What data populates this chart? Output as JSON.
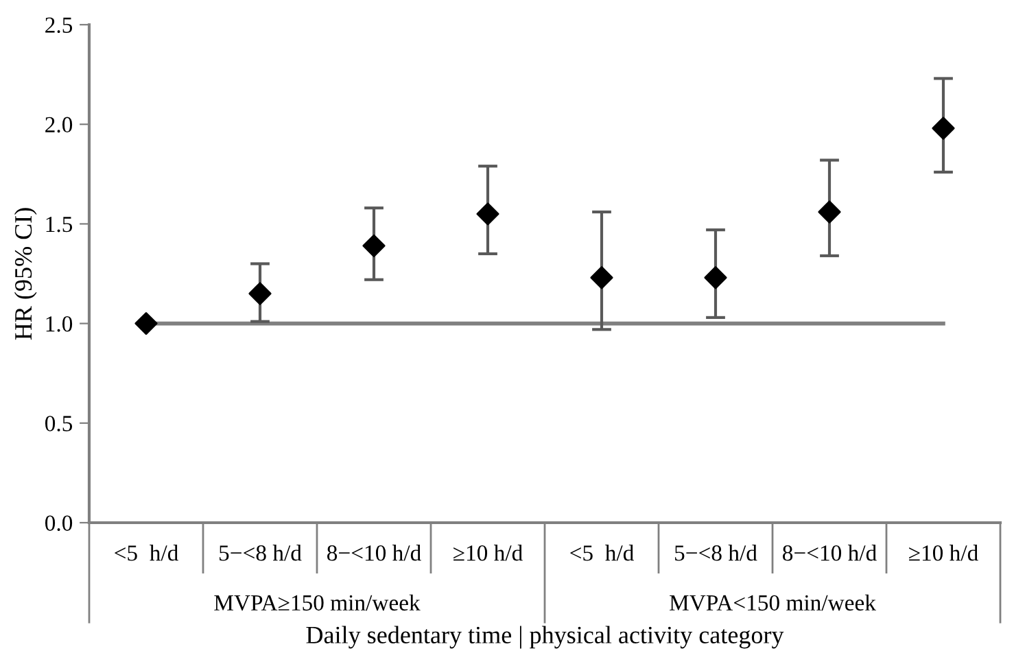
{
  "chart_data": {
    "type": "scatter",
    "xlabel": "Daily sedentary time | physical activity category",
    "ylabel": "HR (95% CI)",
    "categories": [
      "<5  h/d",
      "5−<8 h/d",
      "8−<10 h/d",
      "≥10 h/d",
      "<5  h/d",
      "5−<8 h/d",
      "8−<10 h/d",
      "≥10 h/d"
    ],
    "series": [
      {
        "color": "#000000",
        "values": [
          1.0,
          1.15,
          1.39,
          1.55,
          1.23,
          1.23,
          1.56,
          1.98
        ],
        "errors": [
          null,
          [
            1.01,
            1.3
          ],
          [
            1.22,
            1.58
          ],
          [
            1.35,
            1.79
          ],
          [
            0.97,
            1.56
          ],
          [
            1.03,
            1.47
          ],
          [
            1.34,
            1.82
          ],
          [
            1.76,
            2.23
          ]
        ]
      }
    ],
    "annotations": [
      "MVPA≥150 min/week",
      "MVPA<150 min/week"
    ],
    "ref_lines": [
      {
        "axis": "y",
        "value": 1.0,
        "color": "#808080",
        "line_style": "solid"
      }
    ],
    "ylim": [
      0,
      2.5
    ],
    "yticks": [
      {
        "value": 0,
        "label": "0.0"
      },
      {
        "value": 0.5,
        "label": "0.5"
      },
      {
        "value": 1.0,
        "label": "1.0"
      },
      {
        "value": 1.5,
        "label": "1.5"
      },
      {
        "value": 2.0,
        "label": "2.0"
      },
      {
        "value": 2.5,
        "label": "2.5"
      }
    ],
    "marker": "diamond",
    "grid": false,
    "legend": false
  }
}
